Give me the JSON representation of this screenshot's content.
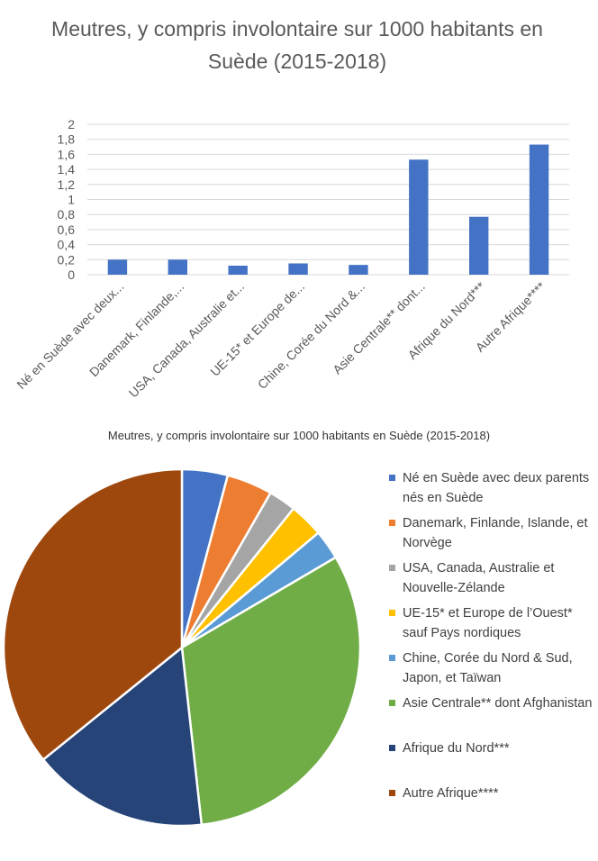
{
  "chart_data": [
    {
      "type": "bar",
      "title": "Meutres, y compris involontaire sur 1000 habitants en Suède (2015-2018)",
      "categories": [
        "Né en Suède avec deux...",
        "Danemark, Finlande,...",
        "USA, Canada, Australie et...",
        "UE-15* et Europe de...",
        "Chine, Corée du Nord &...",
        "Asie Centrale** dont...",
        "Afrique du Nord***",
        "Autre Afrique****"
      ],
      "values": [
        0.2,
        0.2,
        0.12,
        0.15,
        0.13,
        1.53,
        0.77,
        1.73
      ],
      "ylim": [
        0,
        2
      ],
      "yticks": [
        "0",
        "0,2",
        "0,4",
        "0,6",
        "0,8",
        "1",
        "1,2",
        "1,4",
        "1,6",
        "1,8",
        "2"
      ],
      "grid": true,
      "color": "#4472C4"
    },
    {
      "type": "pie",
      "title": "Meutres, y compris involontaire sur 1000 habitants en Suède (2015-2018)",
      "legend_position": "right",
      "labels": [
        "Né en Suède avec deux parents nés en Suède",
        "Danemark, Finlande, Islande, et Norvège",
        "USA, Canada, Australie et Nouvelle-Zélande",
        "UE-15* et Europe de l’Ouest* sauf Pays nordiques",
        "Chine, Corée du Nord & Sud, Japon, et Taïwan",
        "Asie Centrale** dont Afghanistan",
        "Afrique du Nord***",
        "Autre Afrique****"
      ],
      "values": [
        0.2,
        0.2,
        0.12,
        0.15,
        0.13,
        1.53,
        0.77,
        1.73
      ],
      "colors": [
        "#4472C4",
        "#ED7D31",
        "#A5A5A5",
        "#FFC000",
        "#5B9BD5",
        "#70AD47",
        "#264478",
        "#9E480E"
      ]
    }
  ]
}
